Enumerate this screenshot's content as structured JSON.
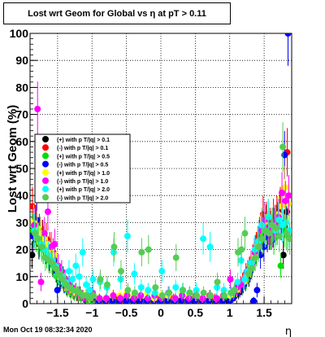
{
  "title": "Lost wrt Geom for Global vs   η at pT > 0.11",
  "timestamp": "Mon Oct 19 08:32:34 2020",
  "chart_data": {
    "type": "scatter",
    "title": "Lost wrt Geom for Global vs   η at pT > 0.11",
    "xlabel": "η",
    "ylabel": "Lost wrt Geom (%)",
    "xlim": [
      -1.9,
      1.9
    ],
    "ylim": [
      0,
      100
    ],
    "xticks": [
      -1.5,
      -1,
      -0.5,
      0,
      0.5,
      1,
      1.5
    ],
    "xtick_labels": [
      "−1.5",
      "−1",
      "−0.5",
      "0",
      "0.5",
      "1",
      "1.5"
    ],
    "yticks": [
      0,
      10,
      20,
      30,
      40,
      50,
      60,
      70,
      80,
      90,
      100
    ],
    "grid": true,
    "legend": "left-middle",
    "legend_entries": [
      "(+) with p T/|q| > 0.1",
      "(-) with p T/|q| > 0.1",
      "(+) with p T/|q| > 0.5",
      "(-) with p T/|q| > 0.5",
      "(+) with p T/|q| > 1.0",
      "(-) with p T/|q| > 1.0",
      "(+) with p T/|q| > 2.0",
      "(-) with p T/|q| > 2.0"
    ],
    "series": [
      {
        "name": "(+) with p T/|q| > 0.1",
        "color": "#000000",
        "x": [
          -1.85,
          -1.8,
          -1.75,
          -1.7,
          -1.65,
          -1.6,
          -1.55,
          -1.5,
          -1.45,
          -1.4,
          -1.35,
          -1.3,
          -1.25,
          -1.2,
          -1.15,
          -1.1,
          -1.05,
          -1.0,
          -0.9,
          -0.8,
          -0.7,
          -0.6,
          -0.5,
          -0.4,
          -0.3,
          -0.2,
          -0.1,
          0,
          0.1,
          0.2,
          0.3,
          0.4,
          0.5,
          0.6,
          0.7,
          0.8,
          0.9,
          1.0,
          1.05,
          1.1,
          1.15,
          1.2,
          1.25,
          1.3,
          1.35,
          1.4,
          1.45,
          1.5,
          1.55,
          1.6,
          1.65,
          1.7,
          1.75,
          1.8,
          1.85
        ],
        "y": [
          18,
          29,
          22,
          25,
          20,
          17,
          15,
          12,
          8,
          10,
          6,
          5,
          4,
          3,
          4,
          2,
          1,
          2,
          1,
          1,
          1,
          1,
          1,
          1,
          1,
          1,
          1,
          1,
          1,
          1,
          1,
          1,
          1,
          1,
          1,
          1,
          1,
          1,
          2,
          3,
          4,
          6,
          8,
          10,
          15,
          20,
          25,
          28,
          30,
          26,
          27,
          30,
          35,
          18,
          34
        ]
      },
      {
        "name": "(-) with p T/|q| > 0.1",
        "color": "#ff0000",
        "x": [
          -1.85,
          -1.8,
          -1.75,
          -1.7,
          -1.65,
          -1.6,
          -1.55,
          -1.5,
          -1.45,
          -1.4,
          -1.35,
          -1.3,
          -1.25,
          -1.2,
          -1.15,
          -1.1,
          -1.05,
          -1.0,
          -0.9,
          -0.8,
          -0.7,
          -0.6,
          -0.5,
          -0.4,
          -0.3,
          -0.2,
          -0.1,
          0,
          0.1,
          0.2,
          0.3,
          0.4,
          0.5,
          0.6,
          0.7,
          0.8,
          0.9,
          1.0,
          1.05,
          1.1,
          1.15,
          1.2,
          1.25,
          1.3,
          1.35,
          1.4,
          1.45,
          1.5,
          1.55,
          1.6,
          1.65,
          1.7,
          1.75,
          1.8,
          1.85
        ],
        "y": [
          36,
          30,
          27,
          25,
          24,
          21,
          19,
          14,
          10,
          8,
          7,
          6,
          4,
          3,
          3,
          2,
          2,
          2,
          1,
          1,
          1,
          2,
          1,
          1,
          2,
          1,
          1,
          2,
          1,
          2,
          1,
          1,
          2,
          1,
          1,
          2,
          1,
          2,
          3,
          5,
          6,
          8,
          11,
          13,
          17,
          21,
          26,
          33,
          31,
          29,
          32,
          33,
          36,
          28,
          56
        ]
      },
      {
        "name": "(+) with p T/|q| > 0.5",
        "color": "#00dd00",
        "x": [
          -1.85,
          -1.8,
          -1.75,
          -1.7,
          -1.65,
          -1.6,
          -1.55,
          -1.5,
          -1.45,
          -1.4,
          -1.35,
          -1.3,
          -1.25,
          -1.2,
          -1.15,
          -1.1,
          -1.05,
          -1.0,
          -0.9,
          -0.8,
          -0.7,
          -0.6,
          -0.5,
          -0.4,
          -0.3,
          -0.2,
          -0.1,
          0,
          0.1,
          0.2,
          0.3,
          0.4,
          0.5,
          0.6,
          0.7,
          0.8,
          0.9,
          1.0,
          1.05,
          1.1,
          1.15,
          1.2,
          1.25,
          1.3,
          1.35,
          1.4,
          1.45,
          1.5,
          1.55,
          1.6,
          1.65,
          1.7,
          1.75,
          1.8,
          1.85
        ],
        "y": [
          27,
          25,
          23,
          20,
          18,
          16,
          14,
          10,
          8,
          7,
          5,
          4,
          3,
          3,
          2,
          2,
          1,
          1,
          1,
          1,
          1,
          1,
          2,
          1,
          2,
          1,
          1,
          1,
          1,
          1,
          1,
          1,
          2,
          1,
          1,
          1,
          2,
          2,
          3,
          4,
          6,
          7,
          9,
          12,
          16,
          19,
          23,
          25,
          27,
          26,
          24,
          28,
          14,
          27,
          25
        ]
      },
      {
        "name": "(-) with p T/|q| > 0.5",
        "color": "#0000ff",
        "x": [
          -1.85,
          -1.8,
          -1.75,
          -1.7,
          -1.65,
          -1.6,
          -1.55,
          -1.5,
          -1.45,
          -1.4,
          -1.35,
          -1.3,
          -1.25,
          -1.2,
          -1.15,
          -1.1,
          -1.05,
          -1.0,
          -0.9,
          -0.8,
          -0.7,
          -0.6,
          -0.5,
          -0.4,
          -0.3,
          -0.2,
          -0.1,
          0,
          0.1,
          0.2,
          0.3,
          0.4,
          0.5,
          0.6,
          0.7,
          0.8,
          0.9,
          1.0,
          1.05,
          1.1,
          1.15,
          1.2,
          1.25,
          1.3,
          1.35,
          1.4,
          1.45,
          1.5,
          1.55,
          1.6,
          1.65,
          1.7,
          1.75,
          1.8,
          1.85
        ],
        "y": [
          25,
          31,
          26,
          23,
          21,
          19,
          16,
          5,
          9,
          7,
          6,
          5,
          4,
          4,
          3,
          2,
          2,
          2,
          1,
          1,
          1,
          1,
          1,
          1,
          1,
          1,
          1,
          1,
          1,
          1,
          1,
          1,
          1,
          1,
          1,
          1,
          1,
          1,
          2,
          4,
          5,
          7,
          10,
          12,
          1,
          5,
          18,
          21,
          25,
          28,
          29,
          31,
          30,
          55,
          100
        ]
      },
      {
        "name": "(+) with p T/|q| > 1.0",
        "color": "#ffff00",
        "x": [
          -1.85,
          -1.8,
          -1.75,
          -1.7,
          -1.65,
          -1.6,
          -1.55,
          -1.5,
          -1.45,
          -1.4,
          -1.35,
          -1.3,
          -1.25,
          -1.2,
          -1.15,
          -1.1,
          -1.05,
          -1.0,
          -0.9,
          -0.8,
          -0.7,
          -0.6,
          -0.5,
          -0.4,
          -0.3,
          -0.2,
          -0.1,
          0,
          0.1,
          0.2,
          0.3,
          0.4,
          0.5,
          0.6,
          0.7,
          0.8,
          0.9,
          1.0,
          1.05,
          1.1,
          1.15,
          1.2,
          1.25,
          1.3,
          1.35,
          1.4,
          1.45,
          1.5,
          1.55,
          1.6,
          1.65,
          1.7,
          1.75,
          1.8,
          1.85
        ],
        "y": [
          30,
          28,
          26,
          24,
          22,
          20,
          18,
          13,
          11,
          8,
          6,
          5,
          4,
          4,
          3,
          3,
          2,
          3,
          2,
          2,
          3,
          3,
          4,
          3,
          3,
          4,
          2,
          3,
          3,
          2,
          4,
          3,
          3,
          2,
          3,
          2,
          3,
          3,
          4,
          5,
          7,
          8,
          11,
          14,
          18,
          22,
          27,
          30,
          32,
          28,
          30,
          33,
          36,
          43,
          37
        ]
      },
      {
        "name": "(-) with p T/|q| > 1.0",
        "color": "#ff00ff",
        "x": [
          -1.85,
          -1.8,
          -1.75,
          -1.7,
          -1.65,
          -1.6,
          -1.55,
          -1.5,
          -1.45,
          -1.4,
          -1.35,
          -1.3,
          -1.25,
          -1.2,
          -1.15,
          -1.1,
          -1.05,
          -1.0,
          -0.9,
          -0.8,
          -0.7,
          -0.6,
          -0.5,
          -0.4,
          -0.3,
          -0.2,
          -0.1,
          0,
          0.1,
          0.2,
          0.3,
          0.4,
          0.5,
          0.6,
          0.7,
          0.8,
          0.9,
          1.0,
          1.05,
          1.1,
          1.15,
          1.2,
          1.25,
          1.3,
          1.35,
          1.4,
          1.45,
          1.5,
          1.55,
          1.6,
          1.65,
          1.7,
          1.75,
          1.8,
          1.85
        ],
        "y": [
          29,
          72,
          8,
          26,
          34,
          21,
          22,
          14,
          12,
          9,
          7,
          6,
          5,
          4,
          3,
          2,
          3,
          4,
          2,
          2,
          3,
          2,
          3,
          2,
          3,
          2,
          3,
          2,
          4,
          2,
          3,
          2,
          3,
          2,
          3,
          2,
          3,
          9,
          4,
          6,
          7,
          9,
          12,
          15,
          19,
          23,
          27,
          31,
          28,
          26,
          30,
          32,
          41,
          38,
          40
        ]
      },
      {
        "name": "(+) with p T/|q| > 2.0",
        "color": "#00ffff",
        "x": [
          -1.85,
          -1.8,
          -1.75,
          -1.7,
          -1.65,
          -1.6,
          -1.55,
          -1.5,
          -1.45,
          -1.4,
          -1.35,
          -1.3,
          -1.25,
          -1.2,
          -1.15,
          -1.1,
          -1.05,
          -1.0,
          -0.9,
          -0.8,
          -0.7,
          -0.6,
          -0.5,
          -0.4,
          -0.3,
          -0.2,
          -0.1,
          0,
          0.1,
          0.2,
          0.3,
          0.4,
          0.5,
          0.6,
          0.7,
          0.8,
          0.9,
          1.0,
          1.05,
          1.1,
          1.15,
          1.2,
          1.25,
          1.3,
          1.35,
          1.4,
          1.45,
          1.5,
          1.55,
          1.6,
          1.65,
          1.7,
          1.75,
          1.8,
          1.85
        ],
        "y": [
          27,
          24,
          22,
          20,
          18,
          16,
          14,
          11,
          10,
          8,
          12,
          9,
          14,
          10,
          19,
          7,
          5,
          9,
          8,
          6,
          19,
          9,
          25,
          11,
          6,
          5,
          4,
          12,
          4,
          6,
          5,
          4,
          5,
          24,
          21,
          6,
          5,
          4,
          5,
          8,
          16,
          9,
          12,
          15,
          20,
          23,
          29,
          27,
          32,
          29,
          27,
          31,
          29,
          30,
          27
        ]
      },
      {
        "name": "(-) with p T/|q| > 2.0",
        "color": "#55cc55",
        "x": [
          -1.85,
          -1.8,
          -1.75,
          -1.7,
          -1.65,
          -1.6,
          -1.55,
          -1.5,
          -1.45,
          -1.4,
          -1.35,
          -1.3,
          -1.25,
          -1.2,
          -1.15,
          -1.1,
          -1.05,
          -1.0,
          -0.9,
          -0.8,
          -0.7,
          -0.6,
          -0.5,
          -0.4,
          -0.3,
          -0.2,
          -0.1,
          0,
          0.1,
          0.2,
          0.3,
          0.4,
          0.5,
          0.6,
          0.7,
          0.8,
          0.9,
          1.0,
          1.05,
          1.1,
          1.15,
          1.2,
          1.25,
          1.3,
          1.35,
          1.4,
          1.45,
          1.5,
          1.55,
          1.6,
          1.65,
          1.7,
          1.75,
          1.8,
          1.85
        ],
        "y": [
          26,
          24,
          21,
          17,
          16,
          15,
          13,
          11,
          9,
          7,
          6,
          5,
          5,
          4,
          3,
          3,
          2,
          3,
          9,
          7,
          21,
          12,
          5,
          4,
          19,
          20,
          6,
          3,
          4,
          17,
          5,
          4,
          3,
          4,
          3,
          8,
          3,
          4,
          5,
          19,
          20,
          26,
          11,
          13,
          17,
          21,
          24,
          27,
          26,
          29,
          28,
          25,
          58,
          26,
          24
        ]
      }
    ]
  }
}
